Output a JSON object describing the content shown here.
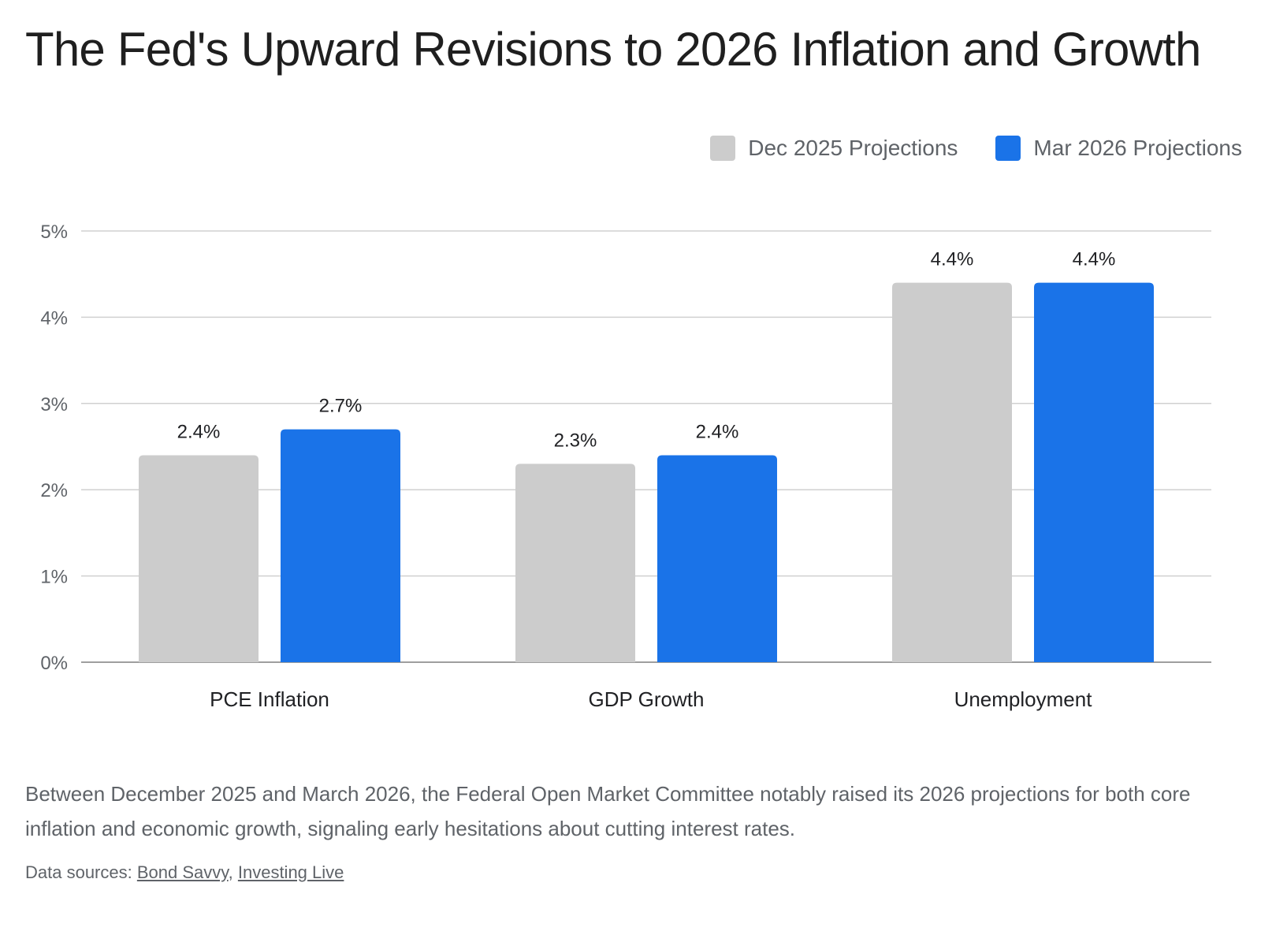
{
  "title": "The Fed's Upward Revisions to 2026 Inflation and Growth",
  "legend": [
    {
      "label": "Dec 2025 Projections",
      "color": "#cccccc"
    },
    {
      "label": "Mar 2026 Projections",
      "color": "#1a73e8"
    }
  ],
  "caption": "Between December 2025 and March 2026, the Federal Open Market Committee notably raised its 2026 projections for both core inflation and economic growth, signaling early hesitations about cutting interest rates.",
  "sources": {
    "prefix": "Data sources: ",
    "links": [
      "Bond Savvy",
      "Investing Live"
    ],
    "separator": ", "
  },
  "chart_data": {
    "type": "bar",
    "categories": [
      "PCE Inflation",
      "GDP Growth",
      "Unemployment"
    ],
    "series": [
      {
        "name": "Dec 2025 Projections",
        "values": [
          2.4,
          2.3,
          4.4
        ],
        "labels": [
          "2.4%",
          "2.3%",
          "4.4%"
        ],
        "color": "#cccccc"
      },
      {
        "name": "Mar 2026 Projections",
        "values": [
          2.7,
          2.4,
          4.4
        ],
        "labels": [
          "2.7%",
          "2.4%",
          "4.4%"
        ],
        "color": "#1a73e8"
      }
    ],
    "yticks": [
      "0%",
      "1%",
      "2%",
      "3%",
      "4%",
      "5%"
    ],
    "ytick_values": [
      0,
      1,
      2,
      3,
      4,
      5
    ],
    "ylim": [
      0,
      5
    ],
    "xlabel": "",
    "ylabel": "",
    "grid": true,
    "legend_position": "top-right"
  }
}
